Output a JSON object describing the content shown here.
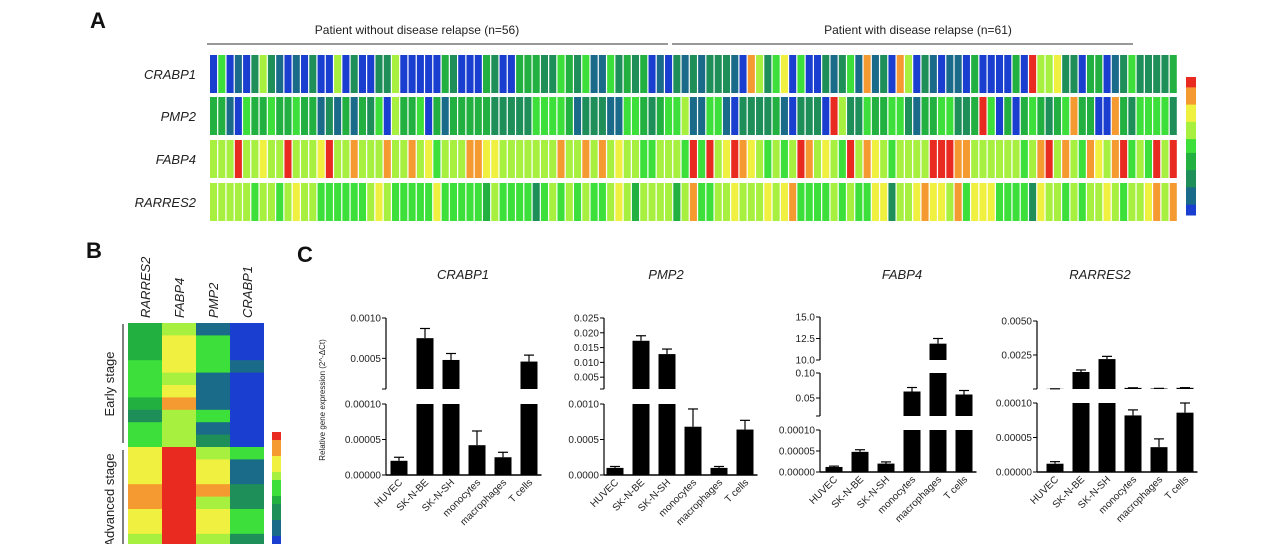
{
  "panels": {
    "a": "A",
    "b": "B",
    "c": "C"
  },
  "color_scale": [
    "#1a3fd0",
    "#1a6a8a",
    "#1f8f5a",
    "#22b040",
    "#3de03a",
    "#a8f040",
    "#f0f040",
    "#f59a30",
    "#e82a20"
  ],
  "chart_data": [
    {
      "type": "heatmap",
      "panel": "A",
      "groups": [
        {
          "label": "Patient without disease relapse (n=56)",
          "n": 56
        },
        {
          "label": "Patient with disease relapse (n=61)",
          "n": 61
        }
      ],
      "rows": [
        {
          "gene": "CRABP1",
          "levels": "04010252101020050200225000003200032003332243241142323010",
          "levels_relapse": "2121222107524604002124171207502101103000030855622033012422223"
        },
        {
          "gene": "PMP2",
          "levels": "33104334334331213132405334031333332222244443122211443234",
          "levels_relapse": "4511441022223102220852243344213344223840303432347330073244442"
        },
        {
          "gene": "FABP4",
          "levels": "55585565585556855755575575645557766555555575575756554455",
          "levels_relapse": "5484856876545458756548576545555888775555554578575476578454858"
        },
        {
          "gene": "RARRES2",
          "levels": "55555455456554444445654444464444435444424545454456535555",
          "levels_relapse": "3574455655565674444545446625567665746664444265545455654556757"
        }
      ],
      "level_scale": "0 = blue (low) … 8 = red (high)"
    },
    {
      "type": "heatmap",
      "panel": "B",
      "columns": [
        "RARRES2",
        "FABP4",
        "PMP2",
        "CRABP1"
      ],
      "groups": [
        {
          "label": "Early stage",
          "rows": [
            [
              3,
              5,
              1,
              0
            ],
            [
              3,
              6,
              4,
              0
            ],
            [
              3,
              6,
              4,
              0
            ],
            [
              4,
              6,
              4,
              1
            ],
            [
              4,
              5,
              1,
              0
            ],
            [
              4,
              6,
              1,
              0
            ],
            [
              3,
              7,
              1,
              0
            ],
            [
              2,
              5,
              4,
              0
            ],
            [
              4,
              5,
              1,
              0
            ],
            [
              4,
              5,
              2,
              0
            ]
          ]
        },
        {
          "label": "Advanced stage",
          "rows": [
            [
              6,
              8,
              5,
              4
            ],
            [
              6,
              8,
              6,
              1
            ],
            [
              6,
              8,
              6,
              1
            ],
            [
              7,
              8,
              7,
              2
            ],
            [
              7,
              8,
              5,
              2
            ],
            [
              6,
              8,
              6,
              4
            ],
            [
              6,
              8,
              6,
              4
            ],
            [
              5,
              8,
              5,
              2
            ]
          ]
        }
      ]
    },
    {
      "type": "bar",
      "panel": "C",
      "title": "CRABP1",
      "ylabel": "Relative gene expression (2^-ΔCt)",
      "categories": [
        "HUVEC",
        "SK-N-BE",
        "SK-N-SH",
        "monocytes",
        "macrophages",
        "T cells"
      ],
      "values": [
        2e-05,
        0.00075,
        0.00048,
        4.2e-05,
        2.5e-05,
        0.00046
      ],
      "error_top": [
        2.5e-05,
        0.00087,
        0.00056,
        6.2e-05,
        3.2e-05,
        0.00054
      ],
      "segments": [
        {
          "range": [
            0,
            0.0001
          ],
          "ticks": [
            0,
            5e-05,
            0.0001
          ],
          "tick_labels": [
            "0.00000",
            "0.00005",
            "0.00010"
          ]
        },
        {
          "range": [
            0.00012,
            0.001
          ],
          "ticks": [
            0.0005,
            0.001
          ],
          "tick_labels": [
            "0.0005",
            "0.0010"
          ]
        }
      ]
    },
    {
      "type": "bar",
      "panel": "C",
      "title": "PMP2",
      "categories": [
        "HUVEC",
        "SK-N-BE",
        "SK-N-SH",
        "monocytes",
        "macrophages",
        "T cells"
      ],
      "values": [
        0.0001,
        0.0173,
        0.0128,
        0.00068,
        0.0001,
        0.00064
      ],
      "error_top": [
        0.00012,
        0.019,
        0.0145,
        0.00093,
        0.00012,
        0.00077
      ],
      "segments": [
        {
          "range": [
            0,
            0.001
          ],
          "ticks": [
            0,
            0.0005,
            0.001
          ],
          "tick_labels": [
            "0.0000",
            "0.0005",
            "0.0010"
          ]
        },
        {
          "range": [
            0.001,
            0.025
          ],
          "ticks": [
            0.005,
            0.01,
            0.015,
            0.02,
            0.025
          ],
          "tick_labels": [
            "0.005",
            "0.010",
            "0.015",
            "0.020",
            "0.025"
          ]
        }
      ]
    },
    {
      "type": "bar",
      "panel": "C",
      "title": "FABP4",
      "categories": [
        "HUVEC",
        "SK-N-BE",
        "SK-N-SH",
        "monocytes",
        "macrophages",
        "T cells"
      ],
      "values": [
        1.2e-05,
        4.8e-05,
        2e-05,
        0.063,
        11.9,
        0.057
      ],
      "error_top": [
        1.4e-05,
        5.3e-05,
        2.4e-05,
        0.071,
        12.5,
        0.065
      ],
      "segments": [
        {
          "range": [
            0,
            0.0001
          ],
          "ticks": [
            0,
            5e-05,
            0.0001
          ],
          "tick_labels": [
            "0.00000",
            "0.00005",
            "0.00010"
          ]
        },
        {
          "range": [
            0.014,
            0.1
          ],
          "ticks": [
            0.05,
            0.1
          ],
          "tick_labels": [
            "0.05",
            "0.10"
          ]
        },
        {
          "range": [
            10,
            15
          ],
          "ticks": [
            10,
            12.5,
            15
          ],
          "tick_labels": [
            "10.0",
            "12.5",
            "15.0"
          ]
        }
      ]
    },
    {
      "type": "bar",
      "panel": "C",
      "title": "RARRES2",
      "categories": [
        "HUVEC",
        "SK-N-BE",
        "SK-N-SH",
        "monocytes",
        "macrophages",
        "T cells"
      ],
      "values": [
        1.2e-05,
        0.00125,
        0.0022,
        8.2e-05,
        3.6e-05,
        8.6e-05
      ],
      "error_top": [
        1.5e-05,
        0.0014,
        0.0024,
        9e-05,
        4.8e-05,
        0.0001
      ],
      "segments": [
        {
          "range": [
            0,
            0.0001
          ],
          "ticks": [
            0,
            5e-05,
            0.0001
          ],
          "tick_labels": [
            "0.00000",
            "0.00005",
            "0.00010"
          ]
        },
        {
          "range": [
            0,
            0.005
          ],
          "ticks": [
            0.0025,
            0.005
          ],
          "tick_labels": [
            "0.0025",
            "0.0050"
          ]
        }
      ]
    }
  ]
}
